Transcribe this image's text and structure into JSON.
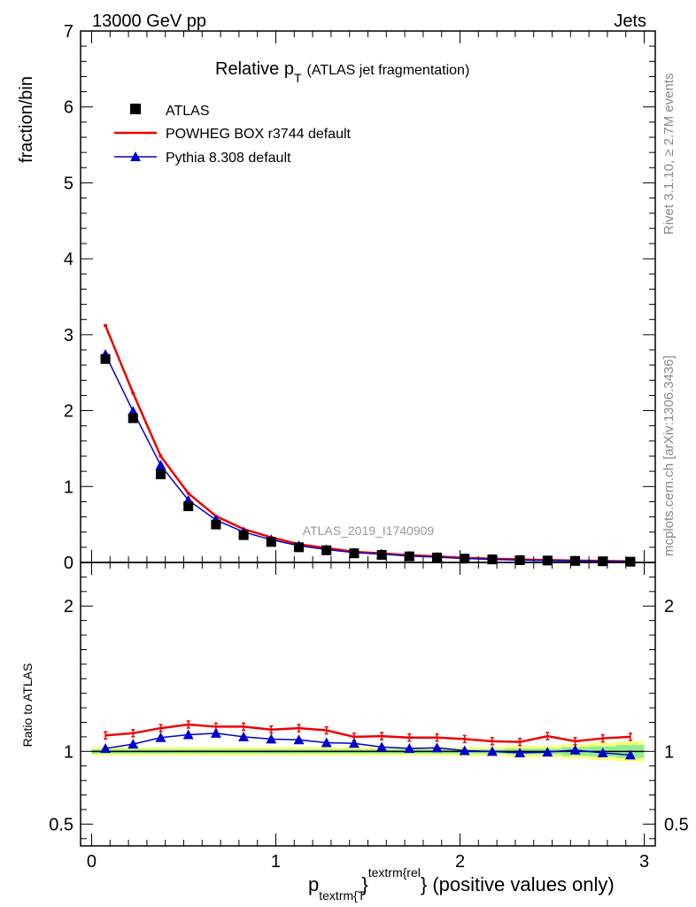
{
  "header": {
    "left": "13000 GeV pp",
    "right": "Jets"
  },
  "plot_title": {
    "main": "Relative p",
    "sub": "T",
    "suffix": "(ATLAS jet fragmentation)"
  },
  "analysis_label": "ATLAS_2019_I1740909",
  "side_labels": {
    "rivet": "Rivet 3.1.10, ≥ 2.7M events",
    "mcplots": "mcplots.cern.ch [arXiv:1306.3436]"
  },
  "xlabel": {
    "p": "p",
    "sub": "textrm{T",
    "sup": "textrm{rel",
    "tail": "} (positive values only)"
  },
  "colors": {
    "atlas": "#000000",
    "powheg": "#ee0000",
    "pythia": "#0000cc",
    "band_yellow": "#ffff80",
    "band_green": "#90ee90"
  },
  "chart_data": {
    "type": "line",
    "x": [
      0.075,
      0.225,
      0.375,
      0.525,
      0.675,
      0.825,
      0.975,
      1.125,
      1.275,
      1.425,
      1.575,
      1.725,
      1.875,
      2.025,
      2.175,
      2.325,
      2.475,
      2.625,
      2.775,
      2.925
    ],
    "main_panel": {
      "ylabel": "fraction/bin",
      "ylim": [
        0,
        7
      ],
      "yticks": [
        "0",
        "1",
        "2",
        "3",
        "4",
        "5",
        "6",
        "7"
      ],
      "series": [
        {
          "name": "ATLAS",
          "marker": "square",
          "values": [
            2.68,
            1.9,
            1.16,
            0.74,
            0.5,
            0.36,
            0.27,
            0.2,
            0.16,
            0.12,
            0.1,
            0.08,
            0.065,
            0.05,
            0.04,
            0.03,
            0.025,
            0.02,
            0.015,
            0.01
          ]
        },
        {
          "name": "POWHEG BOX r3744 default",
          "marker": "line",
          "values": [
            3.12,
            2.23,
            1.4,
            0.91,
            0.61,
            0.44,
            0.33,
            0.24,
            0.19,
            0.14,
            0.12,
            0.095,
            0.08,
            0.06,
            0.05,
            0.04,
            0.03,
            0.025,
            0.02,
            0.015
          ]
        },
        {
          "name": "Pythia 8.308 default",
          "marker": "triangle",
          "values": [
            2.74,
            1.99,
            1.28,
            0.82,
            0.56,
            0.4,
            0.3,
            0.22,
            0.17,
            0.13,
            0.11,
            0.085,
            0.07,
            0.052,
            0.041,
            0.031,
            0.026,
            0.021,
            0.016,
            0.01
          ]
        }
      ]
    },
    "ratio_panel": {
      "ylabel": "Ratio to ATLAS",
      "ylim": [
        0.35,
        2.3
      ],
      "yticks": [
        {
          "value": 0.5,
          "label": "0.5"
        },
        {
          "value": 1,
          "label": "1"
        },
        {
          "value": 2,
          "label": "2"
        }
      ],
      "powheg": [
        1.11,
        1.125,
        1.16,
        1.185,
        1.17,
        1.17,
        1.15,
        1.16,
        1.145,
        1.1,
        1.105,
        1.095,
        1.095,
        1.085,
        1.07,
        1.065,
        1.105,
        1.07,
        1.09,
        1.1
      ],
      "pythia": [
        1.02,
        1.05,
        1.095,
        1.115,
        1.125,
        1.1,
        1.085,
        1.08,
        1.06,
        1.055,
        1.03,
        1.02,
        1.025,
        1.005,
        1.0,
        0.99,
        0.995,
        1.01,
        0.99,
        0.975
      ],
      "band_yellow": [
        0.03,
        0.03,
        0.03,
        0.03,
        0.03,
        0.03,
        0.03,
        0.03,
        0.03,
        0.03,
        0.03,
        0.03,
        0.03,
        0.03,
        0.03,
        0.04,
        0.04,
        0.05,
        0.06,
        0.07
      ],
      "band_green": [
        0.015,
        0.015,
        0.015,
        0.015,
        0.015,
        0.015,
        0.015,
        0.015,
        0.015,
        0.015,
        0.015,
        0.015,
        0.015,
        0.015,
        0.015,
        0.02,
        0.02,
        0.03,
        0.035,
        0.045
      ]
    },
    "xlim": [
      -0.06,
      3.06
    ],
    "xticks": [
      {
        "value": 0,
        "label": "0"
      },
      {
        "value": 1,
        "label": "1"
      },
      {
        "value": 2,
        "label": "2"
      },
      {
        "value": 3,
        "label": "3"
      }
    ]
  }
}
